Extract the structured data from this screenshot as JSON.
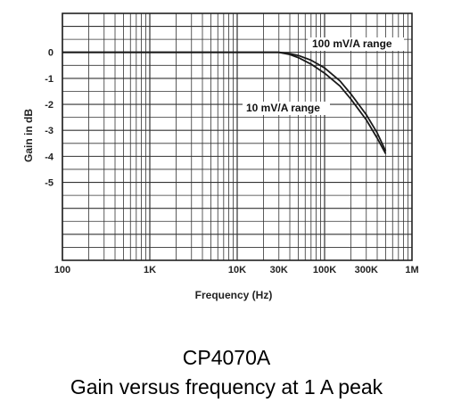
{
  "caption": {
    "model": "CP4070A",
    "description": "Gain versus frequency at 1 A peak"
  },
  "chart_data": {
    "type": "line",
    "xlabel": "Frequency (Hz)",
    "ylabel": "Gain in dB",
    "x_scale": "log",
    "xlim": [
      100,
      1000000
    ],
    "ylim": [
      -8,
      1.5
    ],
    "grid": true,
    "x_ticks": [
      {
        "value": 100,
        "label": "100"
      },
      {
        "value": 1000,
        "label": "1K"
      },
      {
        "value": 10000,
        "label": "10K"
      },
      {
        "value": 30000,
        "label": "30K"
      },
      {
        "value": 100000,
        "label": "100K"
      },
      {
        "value": 300000,
        "label": "300K"
      },
      {
        "value": 1000000,
        "label": "1M"
      }
    ],
    "y_ticks": [
      {
        "value": 0,
        "label": "0"
      },
      {
        "value": -1,
        "label": "-1"
      },
      {
        "value": -2,
        "label": "-2"
      },
      {
        "value": -3,
        "label": "-3"
      },
      {
        "value": -4,
        "label": "-4"
      },
      {
        "value": -5,
        "label": "-5"
      }
    ],
    "series": [
      {
        "name": "100 mV/A range",
        "color": "#1a1a1a",
        "x": [
          100,
          1000,
          10000,
          30000,
          40000,
          50000,
          70000,
          100000,
          150000,
          200000,
          300000,
          400000,
          500000
        ],
        "y": [
          0,
          0,
          0,
          0,
          -0.05,
          -0.12,
          -0.3,
          -0.6,
          -1.1,
          -1.6,
          -2.4,
          -3.1,
          -3.8
        ]
      },
      {
        "name": "10 mV/A range",
        "color": "#1a1a1a",
        "x": [
          100,
          1000,
          10000,
          30000,
          40000,
          50000,
          70000,
          100000,
          150000,
          200000,
          300000,
          400000,
          500000
        ],
        "y": [
          0,
          0,
          0,
          0,
          -0.08,
          -0.2,
          -0.45,
          -0.8,
          -1.3,
          -1.8,
          -2.6,
          -3.3,
          -3.9
        ]
      }
    ]
  }
}
